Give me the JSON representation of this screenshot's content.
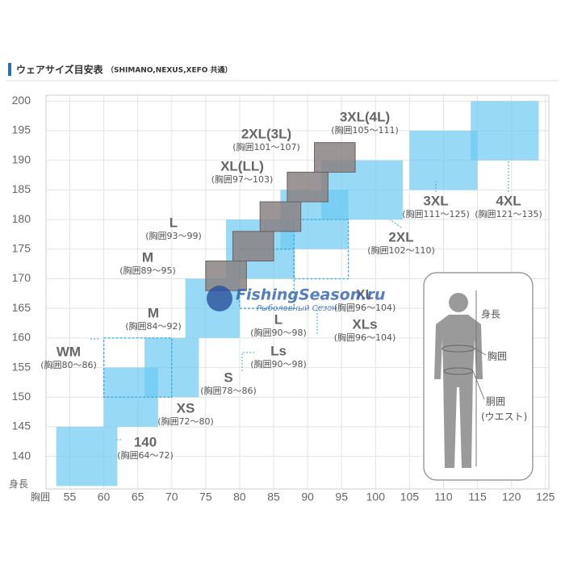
{
  "header": {
    "title": "ウェアサイズ目安表",
    "subtitle": "（SHIMANO,NEXUS,XEFO 共通）"
  },
  "chart_data": {
    "type": "regions",
    "x_label": "胸囲",
    "y_label": "身長",
    "xlim": [
      51.5,
      125.5
    ],
    "ylim": [
      134.5,
      201
    ],
    "xticks": [
      55,
      60,
      65,
      70,
      75,
      80,
      85,
      90,
      95,
      100,
      105,
      110,
      115,
      120,
      125
    ],
    "yticks": [
      140,
      145,
      150,
      155,
      160,
      165,
      170,
      175,
      180,
      185,
      190,
      195,
      200
    ],
    "grid": true,
    "style_colors": {
      "blue": "#6ccaf2",
      "gray": "#8a8282",
      "dashed": "#3aa8dc"
    },
    "regions": [
      {
        "style": "blue",
        "x": [
          53,
          62
        ],
        "y": [
          135,
          145
        ]
      },
      {
        "style": "blue",
        "x": [
          60,
          68
        ],
        "y": [
          145,
          155
        ]
      },
      {
        "style": "blue",
        "x": [
          66,
          74
        ],
        "y": [
          150,
          160
        ]
      },
      {
        "style": "dashed",
        "x": [
          60,
          70
        ],
        "y": [
          150,
          160
        ]
      },
      {
        "style": "blue",
        "x": [
          72,
          80
        ],
        "y": [
          160,
          170
        ]
      },
      {
        "style": "blue",
        "x": [
          78,
          88
        ],
        "y": [
          170,
          180
        ]
      },
      {
        "style": "dashed",
        "x": [
          80,
          88
        ],
        "y": [
          165,
          175
        ]
      },
      {
        "style": "blue",
        "x": [
          86,
          96
        ],
        "y": [
          175,
          185
        ]
      },
      {
        "style": "dashed",
        "x": [
          88,
          96
        ],
        "y": [
          170,
          180
        ]
      },
      {
        "style": "blue",
        "x": [
          92,
          104
        ],
        "y": [
          180,
          190
        ]
      },
      {
        "style": "blue",
        "x": [
          105,
          115
        ],
        "y": [
          185,
          195
        ]
      },
      {
        "style": "blue",
        "x": [
          114,
          124
        ],
        "y": [
          190,
          200
        ]
      },
      {
        "style": "gray",
        "x": [
          75,
          81
        ],
        "y": [
          168,
          173
        ]
      },
      {
        "style": "gray",
        "x": [
          79,
          85
        ],
        "y": [
          173,
          178
        ]
      },
      {
        "style": "gray",
        "x": [
          83,
          89
        ],
        "y": [
          178,
          183
        ]
      },
      {
        "style": "gray",
        "x": [
          87,
          93
        ],
        "y": [
          183,
          188
        ]
      },
      {
        "style": "gray",
        "x": [
          91,
          97
        ],
        "y": [
          188,
          193
        ]
      }
    ],
    "labels": [
      {
        "text": "3XL(4L)",
        "note": "(胸囲105～111)"
      },
      {
        "text": "2XL(3L)",
        "note": "(胸囲101～107)"
      },
      {
        "text": "XL(LL)",
        "note": "(胸囲97～103)"
      },
      {
        "text": "L",
        "note": "(胸囲93～99)"
      },
      {
        "text": "M",
        "note": "(胸囲89～95)"
      },
      {
        "text": "M",
        "note": "(胸囲84～92)"
      },
      {
        "text": "WM",
        "note": "(胸囲80～86)"
      },
      {
        "text": "S",
        "note": "(胸囲78～86)"
      },
      {
        "text": "XS",
        "note": "(胸囲72～80)"
      },
      {
        "text": "140",
        "note": "(胸囲64～72)"
      },
      {
        "text": "L",
        "note": "(胸囲90～98)"
      },
      {
        "text": "Ls",
        "note": "(胸囲90～98)"
      },
      {
        "text": "XL",
        "note": "(胸囲96～104)"
      },
      {
        "text": "XLs",
        "note": "(胸囲96～104)"
      },
      {
        "text": "2XL",
        "note": "(胸囲102～110)"
      },
      {
        "text": "3XL",
        "note": "(胸囲111～125)"
      },
      {
        "text": "4XL",
        "note": "(胸囲121～135)"
      }
    ]
  },
  "figure": {
    "height": "身長",
    "chest": "胸囲",
    "waist": "胴囲",
    "waist_note": "(ウエスト)"
  },
  "watermark": {
    "title": "FishingSeason.ru",
    "subtitle": "Рыболовный Сезон"
  }
}
